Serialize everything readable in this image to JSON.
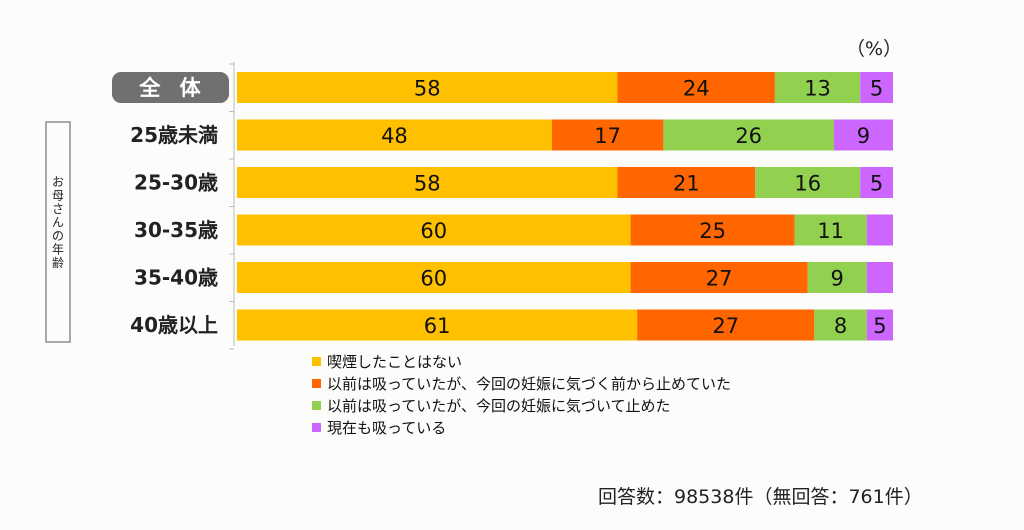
{
  "chart_data": {
    "type": "bar",
    "stacked": true,
    "orientation": "horizontal",
    "unit_label": "（%）",
    "group_label": "お母さんの年齢",
    "categories": [
      "全 体",
      "25歳未満",
      "25-30歳",
      "30-35歳",
      "35-40歳",
      "40歳以上"
    ],
    "series": [
      {
        "name": "喫煙したことはない",
        "color": "#ffc000",
        "values": [
          58,
          48,
          58,
          60,
          60,
          61
        ]
      },
      {
        "name": "以前は吸っていたが、今回の妊娠に気づく前から止めていた",
        "color": "#ff6600",
        "values": [
          24,
          17,
          21,
          25,
          27,
          27
        ]
      },
      {
        "name": "以前は吸っていたが、今回の妊娠に気づいて止めた",
        "color": "#92d050",
        "values": [
          13,
          26,
          16,
          11,
          9,
          8
        ]
      },
      {
        "name": "現在も吸っている",
        "color": "#cc66ff",
        "values": [
          5,
          9,
          5,
          4,
          4,
          5
        ]
      }
    ],
    "data_labels": [
      [
        "58",
        "24",
        "13",
        "5"
      ],
      [
        "48",
        "17",
        "26",
        "9"
      ],
      [
        "58",
        "21",
        "16",
        "5"
      ],
      [
        "60",
        "25",
        "11",
        ""
      ],
      [
        "60",
        "27",
        "9",
        ""
      ],
      [
        "61",
        "27",
        "8",
        "5"
      ]
    ],
    "xlim": [
      0,
      100
    ],
    "legend_position": "bottom"
  },
  "footnote": "回答数：98538件（無回答：761件）"
}
